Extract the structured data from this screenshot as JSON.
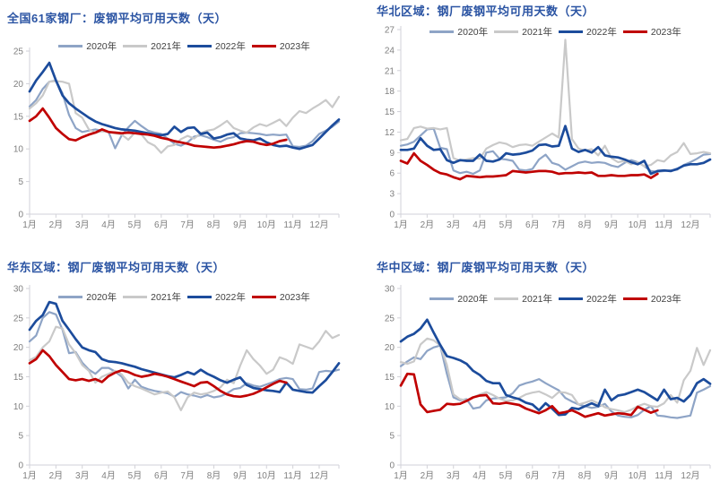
{
  "page": {
    "background": "#FFFFFF"
  },
  "colors": {
    "title": "#2B54A3",
    "axis": "#D2D2D8",
    "tick_label": "#7F7F7F",
    "legend_label": "#404040",
    "series_2020": "#8EA4C6",
    "series_2021": "#C9C9C9",
    "series_2022": "#1C4C9C",
    "series_2023": "#C00000"
  },
  "chart_data": [
    {
      "type": "line",
      "title": "全国61家钢厂：废钢平均可用天数（天）",
      "x_tick_labels": [
        "1月",
        "2月",
        "3月",
        "4月",
        "5月",
        "6月",
        "7月",
        "8月",
        "9月",
        "10月",
        "11月",
        "12月"
      ],
      "x_unit": "week-of-year (4 points per month)",
      "ylim": [
        0,
        25
      ],
      "y_ticks": [
        0,
        5,
        10,
        15,
        20,
        25
      ],
      "legend_position": "top",
      "grid": false,
      "series": [
        {
          "name": "2020年",
          "color": "#8EA4C6",
          "values": [
            16.5,
            17.5,
            19.2,
            20.3,
            20.5,
            18.5,
            15.2,
            13.2,
            12.6,
            12.8,
            13.0,
            12.8,
            12.6,
            10.1,
            12.1,
            13.3,
            14.3,
            13.5,
            12.8,
            12.5,
            12.3,
            11.6,
            10.8,
            10.5,
            11.0,
            11.9,
            12.1,
            11.8,
            11.4,
            11.1,
            11.6,
            11.8,
            12.4,
            12.5,
            12.4,
            12.3,
            12.1,
            12.2,
            12.1,
            12.2,
            10.4,
            10.3,
            10.5,
            11.2,
            12.3,
            12.8,
            13.4,
            14.2
          ]
        },
        {
          "name": "2021年",
          "color": "#C9C9C9",
          "values": [
            16.2,
            17.0,
            18.2,
            20.3,
            20.4,
            20.3,
            20.0,
            15.5,
            14.8,
            13.0,
            12.5,
            12.7,
            12.6,
            12.4,
            12.2,
            11.4,
            12.5,
            12.2,
            11.0,
            10.5,
            9.4,
            10.4,
            10.6,
            11.5,
            12.0,
            11.6,
            12.4,
            12.8,
            13.0,
            13.6,
            14.3,
            13.2,
            12.8,
            12.5,
            13.3,
            13.8,
            13.5,
            14.0,
            14.5,
            13.5,
            14.8,
            15.8,
            15.5,
            16.2,
            16.8,
            17.5,
            16.4,
            18.0
          ]
        },
        {
          "name": "2022年",
          "color": "#1C4C9C",
          "values": [
            18.8,
            20.5,
            21.8,
            23.2,
            20.5,
            18.2,
            17.0,
            16.2,
            15.5,
            14.8,
            14.2,
            13.8,
            13.5,
            13.2,
            13.0,
            12.9,
            12.8,
            12.6,
            12.4,
            12.2,
            12.1,
            12.3,
            13.4,
            12.6,
            13.2,
            13.3,
            12.3,
            12.5,
            11.6,
            11.8,
            12.2,
            12.4,
            11.6,
            11.4,
            11.3,
            11.6,
            11.0,
            10.6,
            10.4,
            10.5,
            10.2,
            10.0,
            10.3,
            10.6,
            11.6,
            12.6,
            13.6,
            14.5
          ]
        },
        {
          "name": "2023年",
          "color": "#C00000",
          "values": [
            14.3,
            15.0,
            16.2,
            14.8,
            13.2,
            12.3,
            11.5,
            11.3,
            11.8,
            12.2,
            12.5,
            13.0,
            12.6,
            12.5,
            12.4,
            12.5,
            12.4,
            12.3,
            12.2,
            12.0,
            11.7,
            11.5,
            11.2,
            11.0,
            10.8,
            10.5,
            10.4,
            10.3,
            10.2,
            10.3,
            10.5,
            10.7,
            11.0,
            11.2,
            11.1,
            10.8,
            10.6,
            10.8,
            11.2,
            11.4
          ]
        }
      ]
    },
    {
      "type": "line",
      "title": "华北区域：钢厂废钢平均可用天数（天）",
      "x_tick_labels": [
        "1月",
        "2月",
        "3月",
        "4月",
        "5月",
        "6月",
        "7月",
        "8月",
        "9月",
        "10月",
        "11月",
        "12月"
      ],
      "x_unit": "week-of-year (4 points per month)",
      "ylim": [
        0,
        27
      ],
      "y_ticks": [
        0,
        3,
        6,
        9,
        12,
        15,
        18,
        21,
        24,
        27
      ],
      "legend_position": "top",
      "grid": false,
      "series": [
        {
          "name": "2020年",
          "color": "#8EA4C6",
          "values": [
            10.0,
            10.2,
            10.6,
            11.5,
            12.4,
            12.5,
            9.7,
            9.5,
            6.4,
            6.0,
            6.2,
            5.9,
            6.4,
            9.0,
            9.2,
            8.1,
            8.0,
            7.8,
            6.5,
            6.4,
            6.6,
            8.0,
            8.7,
            7.5,
            7.2,
            6.5,
            7.0,
            7.5,
            7.7,
            7.5,
            7.6,
            7.5,
            7.1,
            6.9,
            7.5,
            7.9,
            7.6,
            7.0,
            6.3,
            6.2,
            6.3,
            6.4,
            6.5,
            7.2,
            7.6,
            8.1,
            8.7,
            8.8
          ]
        },
        {
          "name": "2021年",
          "color": "#C9C9C9",
          "values": [
            10.8,
            11.0,
            12.6,
            12.8,
            12.5,
            12.6,
            12.4,
            12.6,
            8.2,
            7.8,
            8.0,
            8.2,
            8.1,
            9.6,
            10.1,
            10.5,
            10.3,
            9.8,
            10.1,
            10.2,
            10.0,
            10.6,
            11.2,
            11.8,
            11.2,
            25.5,
            11.0,
            9.6,
            9.3,
            9.5,
            8.6,
            10.0,
            8.2,
            7.6,
            7.8,
            7.3,
            7.6,
            7.0,
            7.2,
            7.9,
            7.7,
            8.6,
            9.1,
            10.4,
            8.8,
            8.9,
            9.1,
            8.9
          ]
        },
        {
          "name": "2022年",
          "color": "#1C4C9C",
          "values": [
            9.4,
            9.4,
            9.6,
            11.1,
            10.0,
            9.4,
            9.5,
            7.9,
            7.5,
            7.9,
            7.8,
            7.8,
            8.7,
            7.8,
            7.7,
            8.0,
            8.9,
            8.7,
            8.8,
            9.0,
            9.3,
            10.1,
            10.2,
            9.9,
            10.0,
            12.9,
            9.6,
            9.1,
            9.4,
            9.0,
            9.8,
            8.6,
            8.4,
            8.3,
            8.0,
            7.6,
            7.3,
            7.8,
            5.9,
            6.3,
            6.4,
            6.3,
            6.6,
            7.1,
            7.3,
            7.3,
            7.5,
            8.0
          ]
        },
        {
          "name": "2023年",
          "color": "#C00000",
          "values": [
            7.8,
            7.4,
            8.9,
            7.8,
            7.2,
            6.5,
            6.0,
            5.8,
            5.4,
            5.1,
            5.6,
            5.5,
            5.4,
            5.5,
            5.5,
            5.6,
            5.7,
            6.3,
            6.2,
            6.1,
            6.2,
            6.3,
            6.3,
            6.2,
            5.9,
            6.0,
            6.0,
            6.1,
            6.0,
            6.1,
            5.6,
            5.6,
            5.7,
            5.6,
            5.6,
            5.7,
            5.7,
            5.8,
            5.3,
            5.9
          ]
        }
      ]
    },
    {
      "type": "line",
      "title": "华东区域：钢厂废钢平均可用天数（天）",
      "x_tick_labels": [
        "1月",
        "2月",
        "3月",
        "4月",
        "5月",
        "6月",
        "7月",
        "8月",
        "9月",
        "10月",
        "11月",
        "12月"
      ],
      "x_unit": "week-of-year (4 points per month)",
      "ylim": [
        0,
        30
      ],
      "y_ticks": [
        0,
        5,
        10,
        15,
        20,
        25,
        30
      ],
      "legend_position": "top",
      "grid": false,
      "series": [
        {
          "name": "2020年",
          "color": "#8EA4C6",
          "values": [
            21.0,
            22.0,
            25.0,
            26.0,
            25.6,
            23.0,
            19.0,
            19.2,
            17.4,
            16.2,
            15.5,
            16.5,
            16.5,
            15.9,
            15.0,
            13.0,
            14.5,
            13.3,
            12.9,
            12.6,
            12.4,
            12.2,
            11.6,
            12.4,
            12.0,
            11.8,
            11.5,
            11.9,
            11.5,
            11.7,
            12.2,
            12.9,
            13.1,
            13.9,
            13.5,
            13.3,
            13.7,
            14.1,
            14.6,
            14.8,
            14.6,
            12.9,
            12.8,
            13.0,
            15.8,
            16.0,
            15.9,
            16.2
          ]
        },
        {
          "name": "2021年",
          "color": "#C9C9C9",
          "values": [
            17.8,
            18.4,
            20.0,
            21.0,
            23.5,
            23.2,
            20.5,
            19.0,
            17.0,
            16.0,
            14.0,
            15.0,
            15.5,
            16.0,
            15.4,
            14.0,
            13.4,
            13.0,
            12.5,
            12.0,
            12.3,
            12.5,
            11.5,
            9.3,
            11.5,
            12.3,
            12.0,
            12.2,
            12.6,
            13.2,
            14.5,
            13.9,
            16.9,
            19.5,
            18.0,
            16.9,
            15.5,
            16.2,
            18.3,
            17.9,
            17.2,
            20.5,
            20.1,
            19.7,
            21.0,
            22.8,
            21.6,
            22.1
          ]
        },
        {
          "name": "2022年",
          "color": "#1C4C9C",
          "values": [
            23.0,
            24.5,
            25.5,
            27.7,
            27.4,
            24.5,
            23.0,
            21.4,
            20.0,
            19.5,
            19.2,
            18.0,
            17.6,
            17.5,
            17.3,
            17.0,
            16.7,
            16.3,
            16.0,
            15.7,
            15.4,
            15.1,
            14.9,
            15.3,
            15.8,
            15.4,
            16.2,
            15.5,
            15.0,
            14.4,
            14.0,
            14.5,
            14.9,
            13.6,
            13.1,
            12.9,
            12.7,
            12.6,
            12.4,
            14.0,
            12.8,
            12.6,
            12.4,
            12.3,
            13.4,
            14.4,
            15.8,
            17.3
          ]
        },
        {
          "name": "2023年",
          "color": "#C00000",
          "values": [
            17.3,
            18.0,
            19.5,
            18.5,
            17.0,
            15.8,
            14.6,
            14.4,
            14.6,
            14.3,
            14.6,
            14.1,
            15.1,
            15.7,
            16.1,
            15.8,
            15.3,
            15.0,
            15.2,
            15.5,
            15.3,
            15.0,
            14.6,
            14.2,
            13.8,
            13.4,
            14.0,
            14.1,
            13.4,
            12.6,
            12.0,
            11.7,
            11.6,
            11.8,
            12.1,
            12.6,
            13.2,
            13.8,
            14.3,
            14.0
          ]
        }
      ]
    },
    {
      "type": "line",
      "title": "华中区域：钢厂废钢平均可用天数（天）",
      "x_tick_labels": [
        "1月",
        "2月",
        "3月",
        "4月",
        "5月",
        "6月",
        "7月",
        "8月",
        "9月",
        "10月",
        "11月",
        "12月"
      ],
      "x_unit": "week-of-year (4 points per month)",
      "ylim": [
        0,
        30
      ],
      "y_ticks": [
        0,
        5,
        10,
        15,
        20,
        25,
        30
      ],
      "legend_position": "top",
      "grid": false,
      "series": [
        {
          "name": "2020年",
          "color": "#8EA4C6",
          "values": [
            16.8,
            17.6,
            18.3,
            18.0,
            19.4,
            20.0,
            20.3,
            15.5,
            11.5,
            11.0,
            11.2,
            9.6,
            9.8,
            11.0,
            11.3,
            11.4,
            11.5,
            12.2,
            13.5,
            13.9,
            14.2,
            14.6,
            13.9,
            13.3,
            12.7,
            11.4,
            10.8,
            10.3,
            10.0,
            9.7,
            9.9,
            10.4,
            9.1,
            8.4,
            8.2,
            8.1,
            8.5,
            9.4,
            10.0,
            8.4,
            8.3,
            8.1,
            8.0,
            8.2,
            8.4,
            12.3,
            12.8,
            13.4
          ]
        },
        {
          "name": "2021年",
          "color": "#C9C9C9",
          "values": [
            17.5,
            17.2,
            17.6,
            20.5,
            21.5,
            21.2,
            20.3,
            17.0,
            12.0,
            11.2,
            11.0,
            11.5,
            12.0,
            12.4,
            11.9,
            11.3,
            10.9,
            11.0,
            11.4,
            12.0,
            12.3,
            12.5,
            12.0,
            11.4,
            12.4,
            12.3,
            11.9,
            10.3,
            10.6,
            11.0,
            10.5,
            9.8,
            9.5,
            9.3,
            9.0,
            9.4,
            10.0,
            10.4,
            10.0,
            9.9,
            10.5,
            11.9,
            10.6,
            14.4,
            16.0,
            19.9,
            17.0,
            19.5
          ]
        },
        {
          "name": "2022年",
          "color": "#1C4C9C",
          "values": [
            21.0,
            21.8,
            22.3,
            23.2,
            24.7,
            22.5,
            20.4,
            18.5,
            18.2,
            17.8,
            17.2,
            16.0,
            15.3,
            14.3,
            13.9,
            13.9,
            11.9,
            11.5,
            11.2,
            10.6,
            10.3,
            9.3,
            10.5,
            9.6,
            8.5,
            8.6,
            9.7,
            9.5,
            10.0,
            10.5,
            10.0,
            12.8,
            11.0,
            11.8,
            12.0,
            12.4,
            12.8,
            12.4,
            11.7,
            11.0,
            12.8,
            11.2,
            11.4,
            10.8,
            11.9,
            13.9,
            14.6,
            13.8
          ]
        },
        {
          "name": "2023年",
          "color": "#C00000",
          "values": [
            13.5,
            15.5,
            15.4,
            10.3,
            9.0,
            9.2,
            9.4,
            10.4,
            10.3,
            10.4,
            10.9,
            11.5,
            11.8,
            11.9,
            10.5,
            10.4,
            10.6,
            10.4,
            10.2,
            9.6,
            9.2,
            8.8,
            9.3,
            10.0,
            8.8,
            9.0,
            9.3,
            8.8,
            8.2,
            8.5,
            8.8,
            8.4,
            8.6,
            8.8,
            8.7,
            8.5,
            9.9,
            9.4,
            8.9,
            9.3
          ]
        }
      ]
    }
  ]
}
